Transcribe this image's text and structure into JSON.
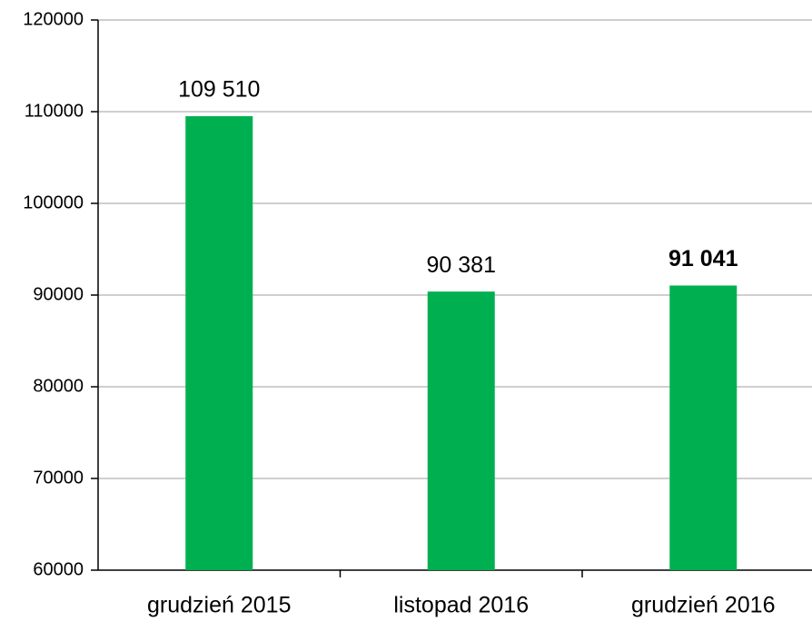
{
  "chart_data": {
    "type": "bar",
    "categories": [
      "grudzień 2015",
      "listopad 2016",
      "grudzień 2016"
    ],
    "values": [
      109510,
      90381,
      91041
    ],
    "value_labels": [
      "109 510",
      "90 381",
      "91 041"
    ],
    "bold_labels": [
      false,
      false,
      true
    ],
    "color": "#00b050",
    "ylim": [
      60000,
      120000
    ],
    "yticks": [
      60000,
      70000,
      80000,
      90000,
      100000,
      110000,
      120000
    ],
    "grid": true
  }
}
